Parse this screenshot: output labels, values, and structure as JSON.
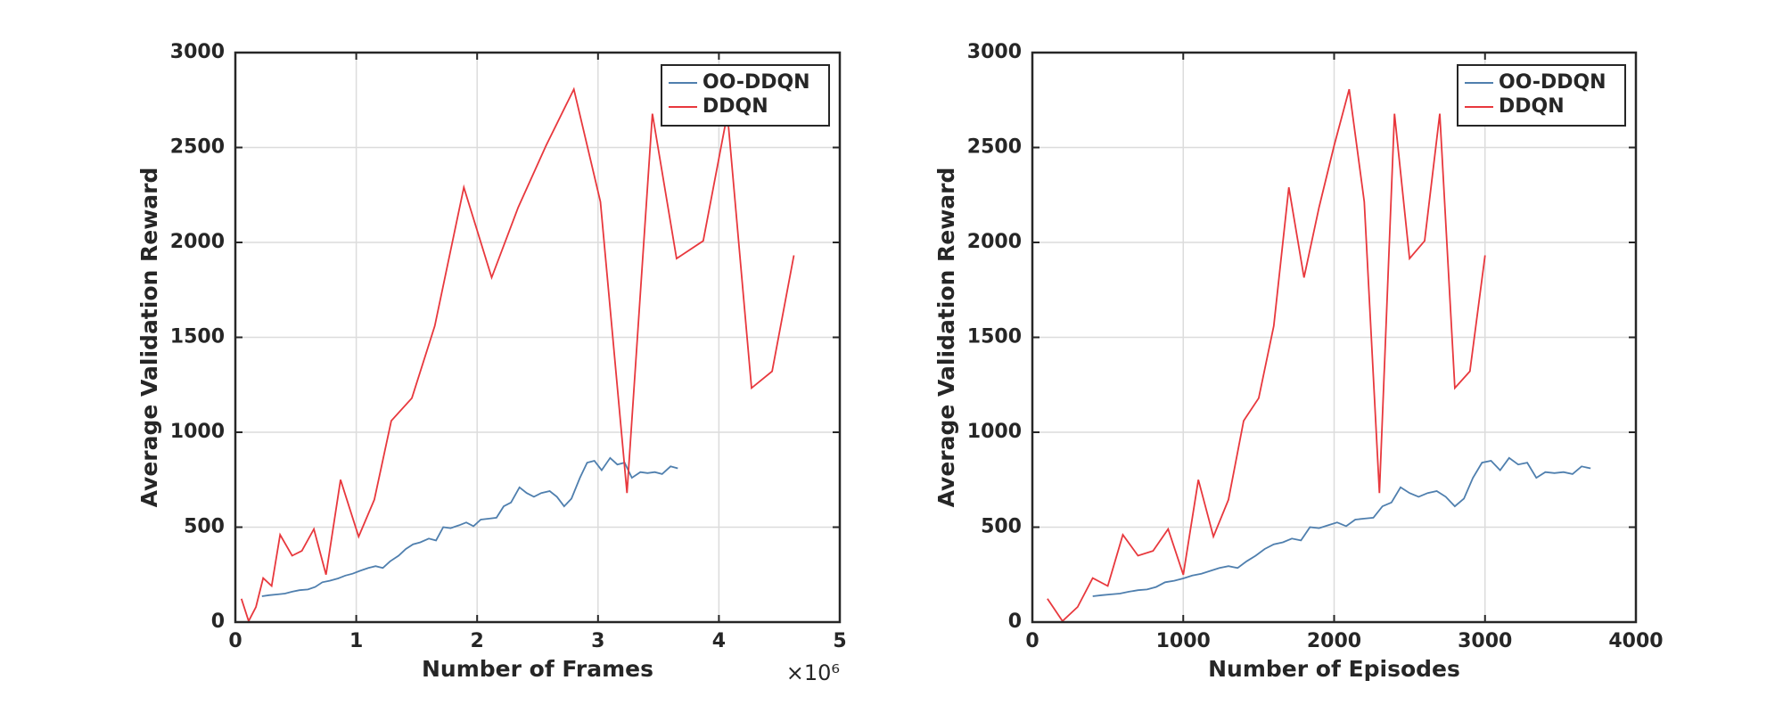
{
  "chart_data": [
    {
      "type": "line",
      "x_label": "Number of Frames",
      "y_label": "Average Validation Reward",
      "x_multiplier": "×10⁶",
      "xlim": [
        0,
        5
      ],
      "xticks": [
        0,
        1,
        2,
        3,
        4,
        5
      ],
      "ylim": [
        0,
        3000
      ],
      "yticks": [
        0,
        500,
        1000,
        1500,
        2000,
        2500,
        3000
      ],
      "grid": true,
      "legend": "top-right",
      "series": [
        {
          "name": "OO-DDQN",
          "color": "#4f7fae",
          "x": [
            0.22,
            0.28,
            0.35,
            0.41,
            0.47,
            0.53,
            0.6,
            0.66,
            0.72,
            0.78,
            0.85,
            0.91,
            0.97,
            1.03,
            1.1,
            1.16,
            1.22,
            1.28,
            1.35,
            1.41,
            1.47,
            1.53,
            1.6,
            1.66,
            1.72,
            1.78,
            1.85,
            1.91,
            1.97,
            2.03,
            2.1,
            2.16,
            2.22,
            2.28,
            2.35,
            2.41,
            2.47,
            2.53,
            2.6,
            2.66,
            2.72,
            2.78,
            2.85,
            2.91,
            2.97,
            3.03,
            3.1,
            3.16,
            3.22,
            3.28,
            3.35,
            3.41,
            3.47,
            3.53,
            3.6,
            3.66
          ],
          "values": [
            136,
            142,
            146,
            150,
            160,
            168,
            172,
            185,
            210,
            218,
            230,
            245,
            255,
            270,
            285,
            295,
            285,
            320,
            350,
            385,
            410,
            420,
            440,
            430,
            500,
            495,
            510,
            525,
            505,
            540,
            545,
            550,
            610,
            630,
            710,
            680,
            660,
            680,
            690,
            660,
            610,
            650,
            760,
            840,
            850,
            800,
            865,
            830,
            840,
            760,
            790,
            785,
            790,
            780,
            820,
            810
          ]
        },
        {
          "name": "DDQN",
          "color": "#e8383d",
          "x": [
            0.05,
            0.11,
            0.17,
            0.23,
            0.3,
            0.37,
            0.47,
            0.55,
            0.65,
            0.75,
            0.87,
            1.02,
            1.15,
            1.29,
            1.46,
            1.65,
            1.89,
            2.12,
            2.34,
            2.57,
            2.8,
            3.02,
            3.24,
            3.45,
            3.65,
            3.87,
            4.07,
            4.27,
            4.44,
            4.62
          ],
          "values": [
            123,
            5,
            80,
            232,
            190,
            460,
            350,
            375,
            490,
            250,
            750,
            450,
            645,
            1060,
            1180,
            1560,
            2290,
            1815,
            2185,
            2510,
            2807,
            2214,
            680,
            2678,
            1915,
            2008,
            2678,
            1233,
            1321,
            1932
          ]
        }
      ]
    },
    {
      "type": "line",
      "x_label": "Number of Episodes",
      "y_label": "Average Validation Reward",
      "xlim": [
        0,
        4000
      ],
      "xticks": [
        0,
        1000,
        2000,
        3000,
        4000
      ],
      "ylim": [
        0,
        3000
      ],
      "yticks": [
        0,
        500,
        1000,
        1500,
        2000,
        2500,
        3000
      ],
      "grid": true,
      "legend": "top-right",
      "series": [
        {
          "name": "OO-DDQN",
          "color": "#4f7fae",
          "x": [
            400,
            460,
            520,
            580,
            640,
            700,
            760,
            820,
            880,
            940,
            1000,
            1060,
            1120,
            1180,
            1240,
            1300,
            1360,
            1420,
            1480,
            1540,
            1600,
            1660,
            1720,
            1780,
            1840,
            1900,
            1960,
            2020,
            2080,
            2140,
            2200,
            2260,
            2320,
            2380,
            2440,
            2500,
            2560,
            2620,
            2680,
            2740,
            2800,
            2860,
            2920,
            2980,
            3040,
            3100,
            3160,
            3220,
            3280,
            3340,
            3400,
            3460,
            3520,
            3580,
            3640,
            3700
          ],
          "values": [
            136,
            142,
            146,
            150,
            160,
            168,
            172,
            185,
            210,
            218,
            230,
            245,
            255,
            270,
            285,
            295,
            285,
            320,
            350,
            385,
            410,
            420,
            440,
            430,
            500,
            495,
            510,
            525,
            505,
            540,
            545,
            550,
            610,
            630,
            710,
            680,
            660,
            680,
            690,
            660,
            610,
            650,
            760,
            840,
            850,
            800,
            865,
            830,
            840,
            760,
            790,
            785,
            790,
            780,
            820,
            810
          ]
        },
        {
          "name": "DDQN",
          "color": "#e8383d",
          "x": [
            100,
            200,
            300,
            400,
            500,
            600,
            700,
            800,
            900,
            1000,
            1100,
            1200,
            1300,
            1400,
            1500,
            1600,
            1700,
            1800,
            1900,
            2000,
            2100,
            2200,
            2300,
            2400,
            2500,
            2600,
            2700,
            2800,
            2900,
            3000
          ],
          "values": [
            123,
            5,
            80,
            232,
            190,
            460,
            350,
            375,
            490,
            250,
            750,
            450,
            645,
            1060,
            1180,
            1560,
            2290,
            1815,
            2185,
            2510,
            2807,
            2214,
            680,
            2678,
            1915,
            2008,
            2678,
            1233,
            1321,
            1932
          ]
        }
      ]
    }
  ]
}
